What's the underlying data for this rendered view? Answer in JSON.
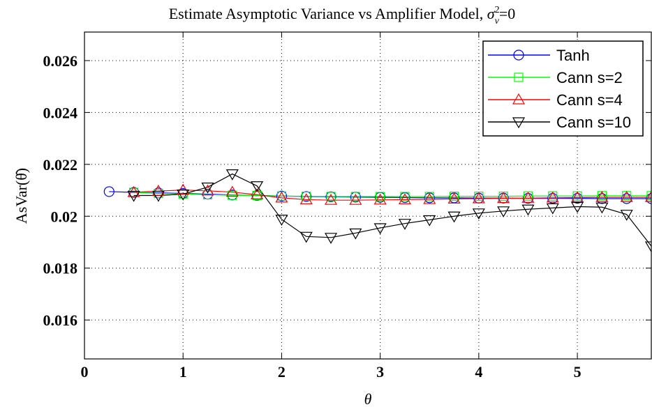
{
  "chart_data": {
    "type": "line",
    "title": "Estimate Asymptotic Variance vs Amplifier Model, σ²_ν=0",
    "title_parts": {
      "main": "Estimate Asymptotic Variance vs Amplifier Model, ",
      "sigma": "σ",
      "sup": "2",
      "sub": "ν",
      "suffix": "=0"
    },
    "xlabel": "θ",
    "ylabel": "AsVar(θ̂)",
    "xlim": [
      0,
      5.75
    ],
    "ylim": [
      0.0145,
      0.0271
    ],
    "xticks": [
      0,
      1,
      2,
      3,
      4,
      5
    ],
    "xtick_labels": [
      "0",
      "1",
      "2",
      "3",
      "4",
      "5"
    ],
    "yticks": [
      0.016,
      0.018,
      0.02,
      0.022,
      0.024,
      0.026
    ],
    "ytick_labels": [
      "0.016",
      "0.018",
      "0.02",
      "0.022",
      "0.024",
      "0.026"
    ],
    "grid": true,
    "legend_position": "top-right",
    "x": [
      0.25,
      0.5,
      0.75,
      1,
      1.25,
      1.5,
      1.75,
      2,
      2.25,
      2.5,
      2.75,
      3,
      3.25,
      3.5,
      3.75,
      4,
      4.25,
      4.5,
      4.75,
      5,
      5.25,
      5.5,
      5.75
    ],
    "series": [
      {
        "name": "Tanh",
        "color": "#0000ff",
        "marker": "circle",
        "values": [
          0.02095,
          0.02092,
          0.0209,
          0.02088,
          0.02085,
          0.02082,
          0.0208,
          0.02078,
          0.02076,
          0.02075,
          0.02074,
          0.02073,
          0.02072,
          0.02071,
          0.02071,
          0.0207,
          0.0207,
          0.02069,
          0.02069,
          0.02069,
          0.02068,
          0.02068,
          0.02068
        ]
      },
      {
        "name": "Cann s=2",
        "color": "#00ff00",
        "marker": "square",
        "values": [
          null,
          0.02092,
          0.02088,
          0.02086,
          0.02083,
          0.02081,
          0.0208,
          0.02078,
          0.02077,
          0.02076,
          0.02076,
          0.02076,
          0.02076,
          0.02076,
          0.02077,
          0.02077,
          0.02077,
          0.02078,
          0.02078,
          0.02078,
          0.02079,
          0.02079,
          0.02079
        ]
      },
      {
        "name": "Cann s=4",
        "color": "#ff0000",
        "marker": "triangle-up",
        "values": [
          null,
          0.02092,
          0.02097,
          0.02101,
          0.02098,
          0.02093,
          0.02083,
          0.02071,
          0.02064,
          0.02062,
          0.02062,
          0.02063,
          0.02064,
          0.02065,
          0.02067,
          0.02068,
          0.02069,
          0.0207,
          0.02071,
          0.02072,
          0.02073,
          0.02073,
          0.02073
        ]
      },
      {
        "name": "Cann s=10",
        "color": "#000000",
        "marker": "triangle-down",
        "values": [
          null,
          0.0208,
          0.0208,
          0.02085,
          0.02112,
          0.02163,
          0.02117,
          0.01988,
          0.01922,
          0.01918,
          0.01935,
          0.01955,
          0.01972,
          0.01986,
          0.02,
          0.02012,
          0.0202,
          0.02027,
          0.02032,
          0.02037,
          0.02035,
          0.02007,
          0.01885
        ]
      }
    ]
  }
}
